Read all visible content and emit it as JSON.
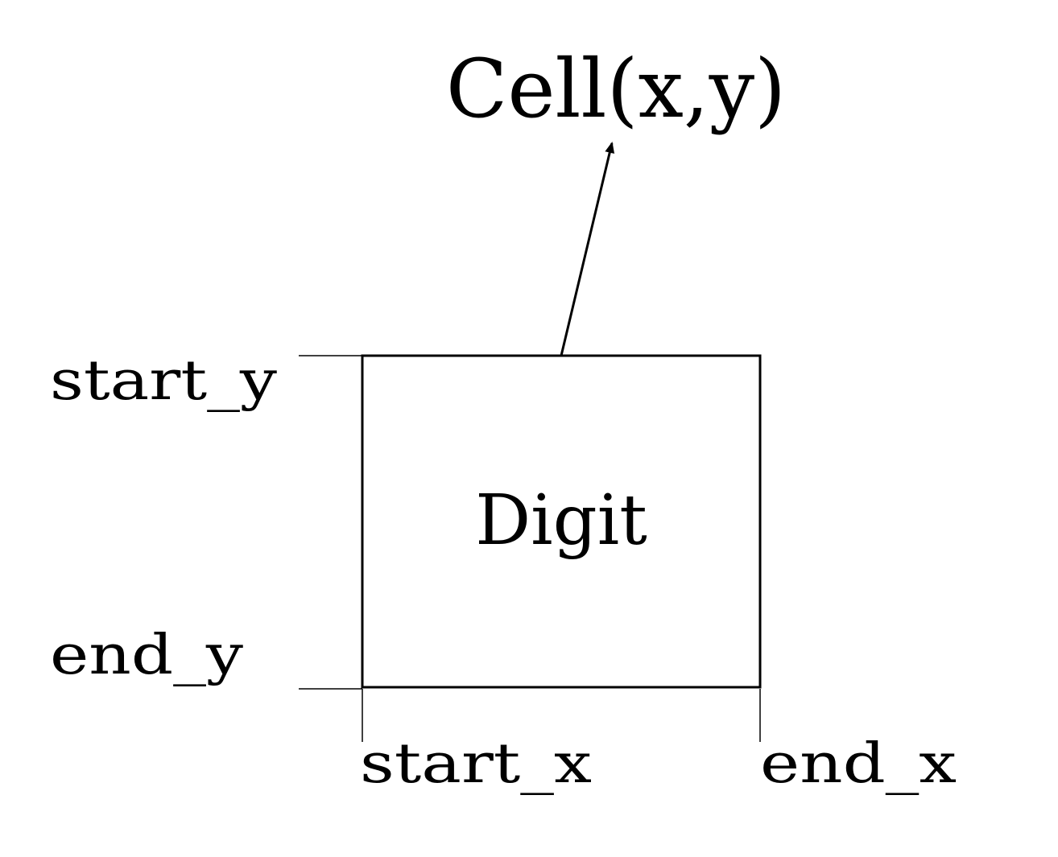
{
  "labels": {
    "cell": "Cell(x,y)",
    "digit": "Digit",
    "start_y": "start_y",
    "end_y": "end_y",
    "start_x": "start_x",
    "end_x": "end_x"
  },
  "colors": {
    "ink": "#000000",
    "background": "#ffffff"
  }
}
